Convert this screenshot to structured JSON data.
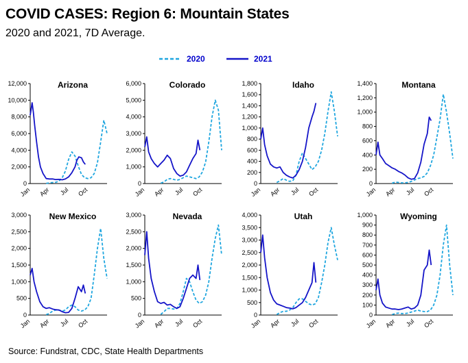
{
  "header": {
    "title": "COVID CASES: Region 6: Mountain States",
    "subtitle": "2020 and 2021, 7D Average."
  },
  "footer": {
    "source": "Source: Fundstrat, CDC, State Health Departments"
  },
  "legend": {
    "items": [
      {
        "label": "2020",
        "color": "#1FA6DF",
        "dashed": true
      },
      {
        "label": "2021",
        "color": "#1414C8",
        "dashed": false
      }
    ]
  },
  "x_tick_labels": [
    "Jan",
    "Apr",
    "Jul",
    "Oct"
  ],
  "chart_data": [
    {
      "type": "line",
      "title": "Arizona",
      "yticks": [
        "0",
        "2,000",
        "4,000",
        "6,000",
        "8,000",
        "10,000",
        "12,000"
      ],
      "ylim": [
        0,
        12000
      ],
      "series": [
        {
          "name": "2020",
          "x": [
            2.5,
            3,
            3.5,
            4,
            4.5,
            5,
            5.5,
            6,
            6.5,
            7,
            7.5,
            8,
            8.5,
            9,
            9.5,
            10,
            10.5,
            11,
            11.5,
            12
          ],
          "values": [
            20,
            80,
            120,
            150,
            300,
            700,
            1500,
            2900,
            3800,
            3300,
            2100,
            1100,
            700,
            600,
            700,
            1200,
            2500,
            5000,
            7600,
            6000
          ]
        },
        {
          "name": "2021",
          "x": [
            0,
            0.3,
            0.5,
            0.7,
            1,
            1.3,
            1.6,
            2,
            2.5,
            3,
            3.5,
            4,
            4.5,
            5,
            5.5,
            6,
            6.5,
            7,
            7.3,
            7.6,
            8,
            8.3,
            8.6
          ],
          "values": [
            8200,
            9700,
            8500,
            7000,
            5000,
            3200,
            2000,
            1200,
            600,
            550,
            550,
            480,
            500,
            450,
            550,
            800,
            1300,
            2000,
            2800,
            3200,
            3100,
            2600,
            2300
          ]
        }
      ]
    },
    {
      "type": "line",
      "title": "Colorado",
      "yticks": [
        "0",
        "1,000",
        "2,000",
        "3,000",
        "4,000",
        "5,000",
        "6,000"
      ],
      "ylim": [
        0,
        6000
      ],
      "series": [
        {
          "name": "2020",
          "x": [
            2.5,
            3,
            3.5,
            4,
            4.5,
            5,
            5.5,
            6,
            6.5,
            7,
            7.5,
            8,
            8.5,
            9,
            9.5,
            10,
            10.5,
            11,
            11.5,
            12
          ],
          "values": [
            20,
            100,
            250,
            300,
            250,
            200,
            250,
            350,
            450,
            400,
            350,
            300,
            400,
            700,
            1300,
            2500,
            4000,
            5000,
            4400,
            2000
          ]
        },
        {
          "name": "2021",
          "x": [
            0,
            0.3,
            0.6,
            1,
            1.5,
            2,
            2.5,
            3,
            3.5,
            4,
            4.5,
            5,
            5.5,
            6,
            6.5,
            7,
            7.5,
            8,
            8.3,
            8.6
          ],
          "values": [
            2200,
            2800,
            1900,
            1500,
            1200,
            1000,
            1200,
            1400,
            1700,
            1500,
            900,
            600,
            450,
            500,
            700,
            1100,
            1500,
            1800,
            2600,
            2000
          ]
        }
      ]
    },
    {
      "type": "line",
      "title": "Idaho",
      "yticks": [
        "0",
        "200",
        "400",
        "600",
        "800",
        "1,000",
        "1,200",
        "1,400",
        "1,600",
        "1,800"
      ],
      "ylim": [
        0,
        1800
      ],
      "series": [
        {
          "name": "2020",
          "x": [
            2.5,
            3,
            3.5,
            4,
            4.5,
            5,
            5.5,
            6,
            6.5,
            7,
            7.5,
            8,
            8.5,
            9,
            9.5,
            10,
            10.5,
            11,
            11.5,
            12
          ],
          "values": [
            20,
            50,
            90,
            60,
            40,
            50,
            150,
            400,
            550,
            450,
            350,
            250,
            300,
            400,
            600,
            900,
            1300,
            1650,
            1300,
            850
          ]
        },
        {
          "name": "2021",
          "x": [
            0,
            0.3,
            0.6,
            1,
            1.5,
            2,
            2.5,
            3,
            3.5,
            4,
            4.5,
            5,
            5.5,
            6,
            6.5,
            7,
            7.5,
            8,
            8.3,
            8.6
          ],
          "values": [
            800,
            1000,
            700,
            500,
            350,
            300,
            280,
            300,
            200,
            150,
            120,
            100,
            150,
            250,
            400,
            650,
            1000,
            1200,
            1300,
            1450
          ]
        }
      ]
    },
    {
      "type": "line",
      "title": "Montana",
      "yticks": [
        "0",
        "200",
        "400",
        "600",
        "800",
        "1,000",
        "1,200",
        "1,400"
      ],
      "ylim": [
        0,
        1400
      ],
      "series": [
        {
          "name": "2020",
          "x": [
            2.5,
            3,
            3.5,
            4,
            4.5,
            5,
            5.5,
            6,
            6.5,
            7,
            7.5,
            8,
            8.5,
            9,
            9.5,
            10,
            10.5,
            11,
            11.5,
            12
          ],
          "values": [
            5,
            20,
            15,
            10,
            10,
            15,
            30,
            50,
            70,
            80,
            100,
            150,
            250,
            400,
            650,
            900,
            1250,
            1000,
            700,
            350
          ]
        },
        {
          "name": "2021",
          "x": [
            0,
            0.3,
            0.6,
            1,
            1.5,
            2,
            2.5,
            3,
            3.5,
            4,
            4.5,
            5,
            5.5,
            6,
            6.5,
            7,
            7.5,
            8,
            8.3,
            8.6
          ],
          "values": [
            400,
            580,
            400,
            350,
            280,
            250,
            220,
            200,
            170,
            150,
            120,
            80,
            60,
            70,
            150,
            300,
            550,
            700,
            930,
            880
          ]
        }
      ]
    },
    {
      "type": "line",
      "title": "New Mexico",
      "yticks": [
        "0",
        "500",
        "1,000",
        "1,500",
        "2,000",
        "2,500",
        "3,000"
      ],
      "ylim": [
        0,
        3000
      ],
      "series": [
        {
          "name": "2020",
          "x": [
            2.5,
            3,
            3.5,
            4,
            4.5,
            5,
            5.5,
            6,
            6.5,
            7,
            7.5,
            8,
            8.5,
            9,
            9.5,
            10,
            10.5,
            11,
            11.5,
            12
          ],
          "values": [
            10,
            50,
            120,
            150,
            150,
            120,
            150,
            250,
            300,
            250,
            150,
            120,
            150,
            250,
            500,
            1200,
            2000,
            2600,
            1700,
            1100
          ]
        },
        {
          "name": "2021",
          "x": [
            0,
            0.3,
            0.6,
            1,
            1.5,
            2,
            2.5,
            3,
            3.5,
            4,
            4.5,
            5,
            5.5,
            6,
            6.5,
            7,
            7.5,
            8,
            8.3,
            8.6
          ],
          "values": [
            1200,
            1400,
            1000,
            700,
            400,
            250,
            200,
            220,
            180,
            160,
            150,
            100,
            70,
            80,
            200,
            500,
            850,
            700,
            900,
            650
          ]
        }
      ]
    },
    {
      "type": "line",
      "title": "Nevada",
      "yticks": [
        "0",
        "500",
        "1,000",
        "1,500",
        "2,000",
        "2,500",
        "3,000"
      ],
      "ylim": [
        0,
        3000
      ],
      "series": [
        {
          "name": "2020",
          "x": [
            2.5,
            3,
            3.5,
            4,
            4.5,
            5,
            5.5,
            6,
            6.5,
            7,
            7.5,
            8,
            8.5,
            9,
            9.5,
            10,
            10.5,
            11,
            11.5,
            12
          ],
          "values": [
            20,
            100,
            200,
            200,
            180,
            200,
            350,
            700,
            1100,
            1000,
            700,
            450,
            350,
            400,
            600,
            1000,
            1700,
            2300,
            2700,
            1800
          ]
        },
        {
          "name": "2021",
          "x": [
            0,
            0.3,
            0.6,
            1,
            1.5,
            2,
            2.5,
            3,
            3.5,
            4,
            4.5,
            5,
            5.5,
            6,
            6.5,
            7,
            7.5,
            8,
            8.3,
            8.6
          ],
          "values": [
            1800,
            2500,
            1700,
            1100,
            700,
            400,
            350,
            380,
            300,
            320,
            250,
            200,
            250,
            500,
            800,
            1100,
            1200,
            1100,
            1500,
            1050
          ]
        }
      ]
    },
    {
      "type": "line",
      "title": "Utah",
      "yticks": [
        "0",
        "500",
        "1,000",
        "1,500",
        "2,000",
        "2,500",
        "3,000",
        "3,500",
        "4,000"
      ],
      "ylim": [
        0,
        4000
      ],
      "series": [
        {
          "name": "2020",
          "x": [
            2.5,
            3,
            3.5,
            4,
            4.5,
            5,
            5.5,
            6,
            6.5,
            7,
            7.5,
            8,
            8.5,
            9,
            9.5,
            10,
            10.5,
            11,
            11.5,
            12
          ],
          "values": [
            20,
            100,
            150,
            150,
            200,
            300,
            500,
            650,
            650,
            550,
            450,
            400,
            450,
            700,
            1300,
            2000,
            2900,
            3500,
            2800,
            2200
          ]
        },
        {
          "name": "2021",
          "x": [
            0,
            0.3,
            0.6,
            1,
            1.5,
            2,
            2.5,
            3,
            3.5,
            4,
            4.5,
            5,
            5.5,
            6,
            6.5,
            7,
            7.5,
            8,
            8.3,
            8.6
          ],
          "values": [
            2500,
            3200,
            2300,
            1500,
            900,
            600,
            450,
            400,
            350,
            300,
            280,
            250,
            300,
            400,
            500,
            700,
            1000,
            1300,
            2100,
            1300
          ]
        }
      ]
    },
    {
      "type": "line",
      "title": "Wyoming",
      "yticks": [
        "0",
        "100",
        "200",
        "300",
        "400",
        "500",
        "600",
        "700",
        "800",
        "900",
        "1,000"
      ],
      "ylim": [
        0,
        1000
      ],
      "series": [
        {
          "name": "2020",
          "x": [
            2.5,
            3,
            3.5,
            4,
            4.5,
            5,
            5.5,
            6,
            6.5,
            7,
            7.5,
            8,
            8.5,
            9,
            9.5,
            10,
            10.5,
            11,
            11.5,
            12
          ],
          "values": [
            5,
            15,
            20,
            15,
            15,
            20,
            30,
            40,
            50,
            40,
            35,
            35,
            50,
            100,
            200,
            400,
            700,
            900,
            500,
            200
          ]
        },
        {
          "name": "2021",
          "x": [
            0,
            0.3,
            0.6,
            1,
            1.5,
            2,
            2.5,
            3,
            3.5,
            4,
            4.5,
            5,
            5.5,
            6,
            6.5,
            7,
            7.5,
            8,
            8.3,
            8.6
          ],
          "values": [
            250,
            360,
            200,
            120,
            80,
            70,
            60,
            60,
            55,
            60,
            70,
            80,
            60,
            70,
            100,
            200,
            450,
            500,
            650,
            500
          ]
        }
      ]
    }
  ]
}
